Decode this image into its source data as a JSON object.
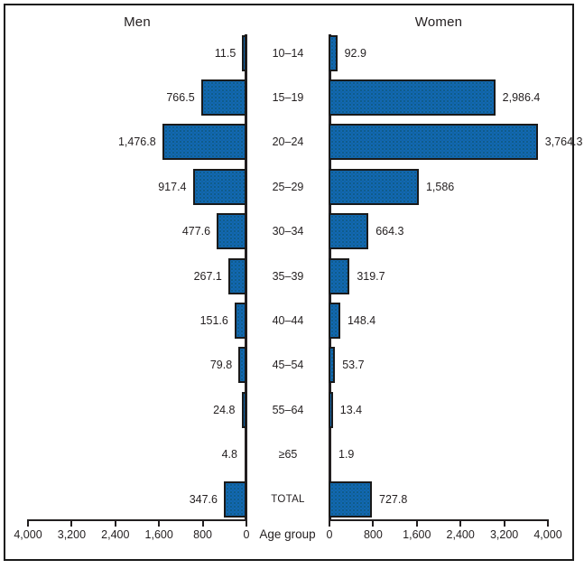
{
  "chart_data": {
    "type": "bar",
    "variant": "population-pyramid",
    "left_title": "Men",
    "right_title": "Women",
    "xlabel": "Age group",
    "axis_max": 4000,
    "axis_tick_step": 800,
    "axis_tick_labels": [
      "0",
      "800",
      "1,600",
      "2,400",
      "3,200",
      "4,000"
    ],
    "categories": [
      "10–14",
      "15–19",
      "20–24",
      "25–29",
      "30–34",
      "35–39",
      "40–44",
      "45–54",
      "55–64",
      "≥65",
      "TOTAL"
    ],
    "series": [
      {
        "name": "Men",
        "side": "left",
        "values": [
          11.5,
          766.5,
          1476.8,
          917.4,
          477.6,
          267.1,
          151.6,
          79.8,
          24.8,
          4.8,
          347.6
        ],
        "labels": [
          "11.5",
          "766.5",
          "1,476.8",
          "917.4",
          "477.6",
          "267.1",
          "151.6",
          "79.8",
          "24.8",
          "4.8",
          "347.6"
        ]
      },
      {
        "name": "Women",
        "side": "right",
        "values": [
          92.9,
          2986.4,
          3764.3,
          1586,
          664.3,
          319.7,
          148.4,
          53.7,
          13.4,
          1.9,
          727.8
        ],
        "labels": [
          "92.9",
          "2,986.4",
          "3,764.3",
          "1,586",
          "664.3",
          "319.7",
          "148.4",
          "53.7",
          "13.4",
          "1.9",
          "727.8"
        ]
      }
    ],
    "legend_position": "none",
    "grid": false,
    "bar_color": "#1268b2",
    "bar_border_color": "#1a1a1a",
    "axis_color": "#231f20",
    "text_color": "#231f20",
    "background_color": "#ffffff",
    "frame_color": "#1a1a1a"
  }
}
